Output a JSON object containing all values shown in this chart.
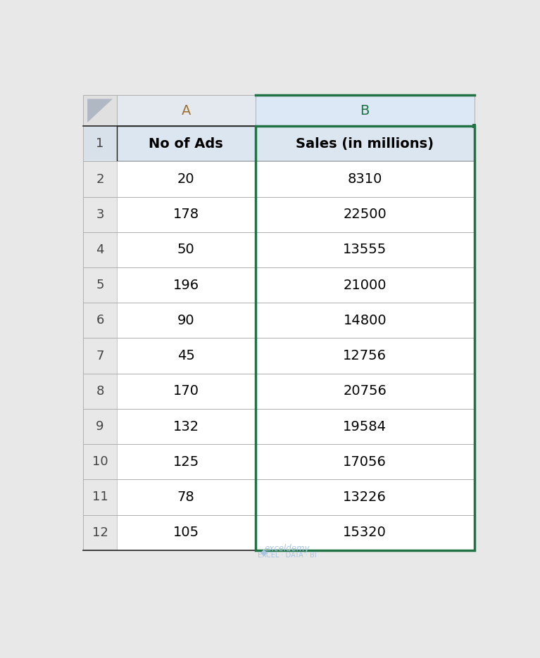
{
  "col_a_header": "No of Ads",
  "col_b_header": "Sales (in millions)",
  "col_a_values": [
    20,
    178,
    50,
    196,
    90,
    45,
    170,
    132,
    125,
    78,
    105
  ],
  "col_b_values": [
    8310,
    22500,
    13555,
    21000,
    14800,
    12756,
    20756,
    19584,
    17056,
    13226,
    15320
  ],
  "row_numbers": [
    "1",
    "2",
    "3",
    "4",
    "5",
    "6",
    "7",
    "8",
    "9",
    "10",
    "11",
    "12"
  ],
  "fig_bg": "#e8e8e8",
  "cell_bg_white": "#ffffff",
  "header_row_bg": "#dce6f1",
  "col_letter_bg_a": "#e4e9f0",
  "col_letter_bg_b": "#dce8f5",
  "row_gutter_bg": "#e8e8e8",
  "row1_gutter_bg": "#d8e0ea",
  "corner_bg": "#e0e0e0",
  "grid_dark": "#1a1a1a",
  "grid_light": "#c8c8c8",
  "green_border": "#217346",
  "text_black": "#000000",
  "text_row_num": "#444444",
  "text_col_letter_a": "#8a6030",
  "text_col_letter_b": "#217346",
  "watermark_color": "#a8c4e0",
  "watermark_text1": "exceldemy",
  "watermark_text2": "EXCEL · DATA · BI",
  "figsize": [
    7.67,
    9.35
  ],
  "dpi": 100
}
